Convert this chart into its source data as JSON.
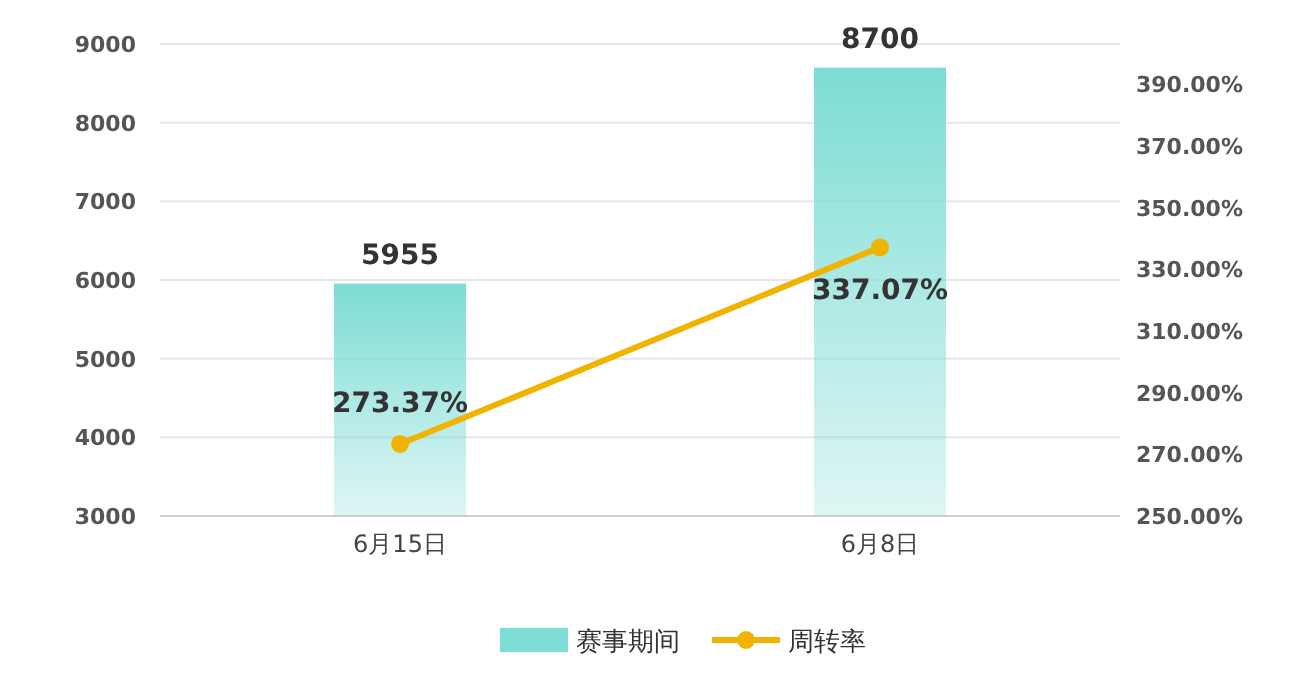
{
  "chart_data": {
    "type": "bar",
    "categories": [
      "6月15日",
      "6月8日"
    ],
    "series": [
      {
        "name": "赛事期间",
        "color": "#7ddcd5",
        "values": [
          5955,
          8700
        ],
        "value_labels": [
          "5955",
          "8700"
        ]
      },
      {
        "name": "周转率",
        "type": "line",
        "axis": "y2",
        "color": "#f0b400",
        "values": [
          273.37,
          337.07
        ],
        "value_labels": [
          "273.37%",
          "337.07%"
        ],
        "marker": "circle"
      }
    ],
    "ylim": [
      3000,
      9000
    ],
    "yticks": [
      3000,
      4000,
      5000,
      6000,
      7000,
      8000,
      9000
    ],
    "y2lim": [
      250,
      403
    ],
    "y2ticks": [
      {
        "value": 250,
        "label": "250.00%"
      },
      {
        "value": 270,
        "label": "270.00%"
      },
      {
        "value": 290,
        "label": "290.00%"
      },
      {
        "value": 310,
        "label": "310.00%"
      },
      {
        "value": 330,
        "label": "330.00%"
      },
      {
        "value": 350,
        "label": "350.00%"
      },
      {
        "value": 370,
        "label": "370.00%"
      },
      {
        "value": 390,
        "label": "390.00%"
      }
    ],
    "grid": "y",
    "legend": "bottom"
  }
}
